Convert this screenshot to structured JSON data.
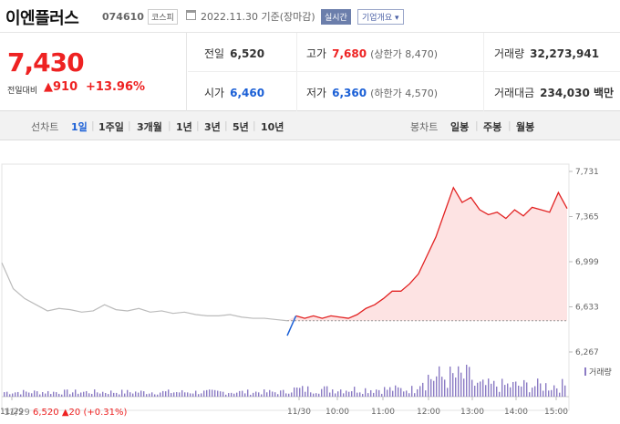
{
  "header": {
    "name": "이엔플러스",
    "code": "074610",
    "market": "코스피",
    "date": "2022.11.30 기준(장마감)",
    "realtime": "실시간",
    "company_info": "기업개요 ▾"
  },
  "price": {
    "current": "7,430",
    "change_label": "전일대비",
    "change": "▲910",
    "change_pct": "+13.96%"
  },
  "stats": {
    "prev_close_label": "전일",
    "prev_close": "6,520",
    "high_label": "고가",
    "high": "7,680",
    "upper_limit": "(상한가 8,470)",
    "volume_label": "거래량",
    "volume": "32,273,941",
    "open_label": "시가",
    "open": "6,460",
    "low_label": "저가",
    "low": "6,360",
    "lower_limit": "(하한가 4,570)",
    "amount_label": "거래대금",
    "amount": "234,030 백만"
  },
  "tabs": {
    "line_chart_label": "선차트",
    "periods": [
      "1일",
      "1주일",
      "3개월",
      "1년",
      "3년",
      "5년",
      "10년"
    ],
    "active_period": "1일",
    "candle_label": "봉차트",
    "candles": [
      "일봉",
      "주봉",
      "월봉"
    ]
  },
  "colors": {
    "up": "#e22222",
    "down": "#1a5fd6",
    "prev_day_line": "#bbbbbb",
    "fill": "#fde3e3",
    "volume": "#8b7bc4"
  },
  "chart_data": {
    "type": "line",
    "y_ticks": [
      "7,731",
      "7,365",
      "6,999",
      "6,633",
      "6,267"
    ],
    "x_ticks": [
      "11/29",
      "11/30",
      "10:00",
      "11:00",
      "12:00",
      "13:00",
      "14:00",
      "15:00"
    ],
    "baseline": 6520,
    "ylim": [
      6267,
      7731
    ],
    "prev_day_series": [
      6990,
      6780,
      6700,
      6650,
      6600,
      6620,
      6610,
      6590,
      6600,
      6650,
      6610,
      6600,
      6620,
      6590,
      6600,
      6580,
      6590,
      6570,
      6560,
      6560,
      6570,
      6550,
      6540,
      6540,
      6530,
      6520
    ],
    "today_series": [
      6400,
      6560,
      6540,
      6560,
      6540,
      6560,
      6550,
      6540,
      6570,
      6620,
      6650,
      6700,
      6760,
      6760,
      6820,
      6900,
      7050,
      7200,
      7400,
      7600,
      7480,
      7520,
      7420,
      7380,
      7400,
      7350,
      7420,
      7370,
      7440,
      7420,
      7400,
      7560,
      7430
    ],
    "volume_legend": "거래량",
    "prev_close_summary": {
      "date": "11/29",
      "price": "6,520",
      "change": "▲20",
      "pct": "(+0.31%)"
    }
  }
}
